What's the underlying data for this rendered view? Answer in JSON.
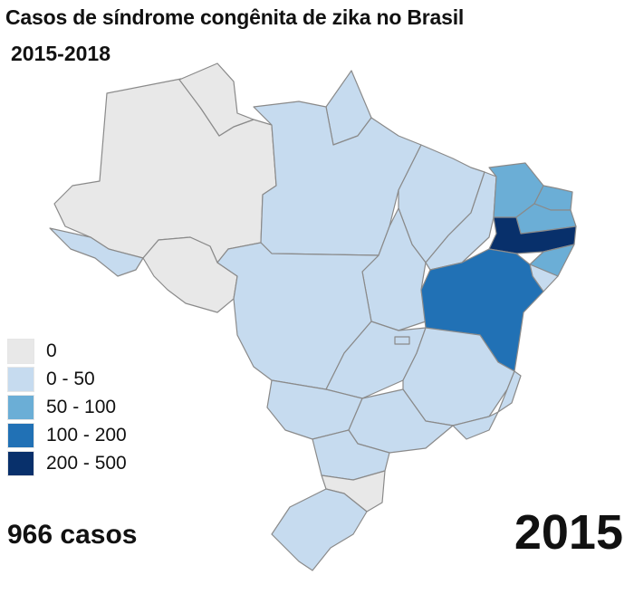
{
  "title": "Casos de síndrome congênita de zika no Brasil",
  "subtitle": "2015-2018",
  "legend": [
    {
      "label": "0",
      "color": "#e8e8e8"
    },
    {
      "label": "0 - 50",
      "color": "#c6dbef"
    },
    {
      "label": "50 - 100",
      "color": "#6baed6"
    },
    {
      "label": "100 - 200",
      "color": "#2171b5"
    },
    {
      "label": "200 - 500",
      "color": "#08306b"
    }
  ],
  "total_cases": "966 casos",
  "year": "2015",
  "states": [
    {
      "id": "AM",
      "bin": 0
    },
    {
      "id": "RR",
      "bin": 0
    },
    {
      "id": "AC",
      "bin": 1
    },
    {
      "id": "RO",
      "bin": 0
    },
    {
      "id": "PA",
      "bin": 1
    },
    {
      "id": "AP",
      "bin": 1
    },
    {
      "id": "MT",
      "bin": 1
    },
    {
      "id": "TO",
      "bin": 1
    },
    {
      "id": "MA",
      "bin": 1
    },
    {
      "id": "PI",
      "bin": 1
    },
    {
      "id": "CE",
      "bin": 2
    },
    {
      "id": "RN",
      "bin": 2
    },
    {
      "id": "PB",
      "bin": 2
    },
    {
      "id": "PE",
      "bin": 4
    },
    {
      "id": "AL",
      "bin": 2
    },
    {
      "id": "SE",
      "bin": 1
    },
    {
      "id": "BA",
      "bin": 3
    },
    {
      "id": "GO",
      "bin": 1
    },
    {
      "id": "DF",
      "bin": 1
    },
    {
      "id": "MS",
      "bin": 1
    },
    {
      "id": "MG",
      "bin": 1
    },
    {
      "id": "ES",
      "bin": 1
    },
    {
      "id": "RJ",
      "bin": 1
    },
    {
      "id": "SP",
      "bin": 1
    },
    {
      "id": "PR",
      "bin": 1
    },
    {
      "id": "SC",
      "bin": 0
    },
    {
      "id": "RS",
      "bin": 1
    }
  ]
}
